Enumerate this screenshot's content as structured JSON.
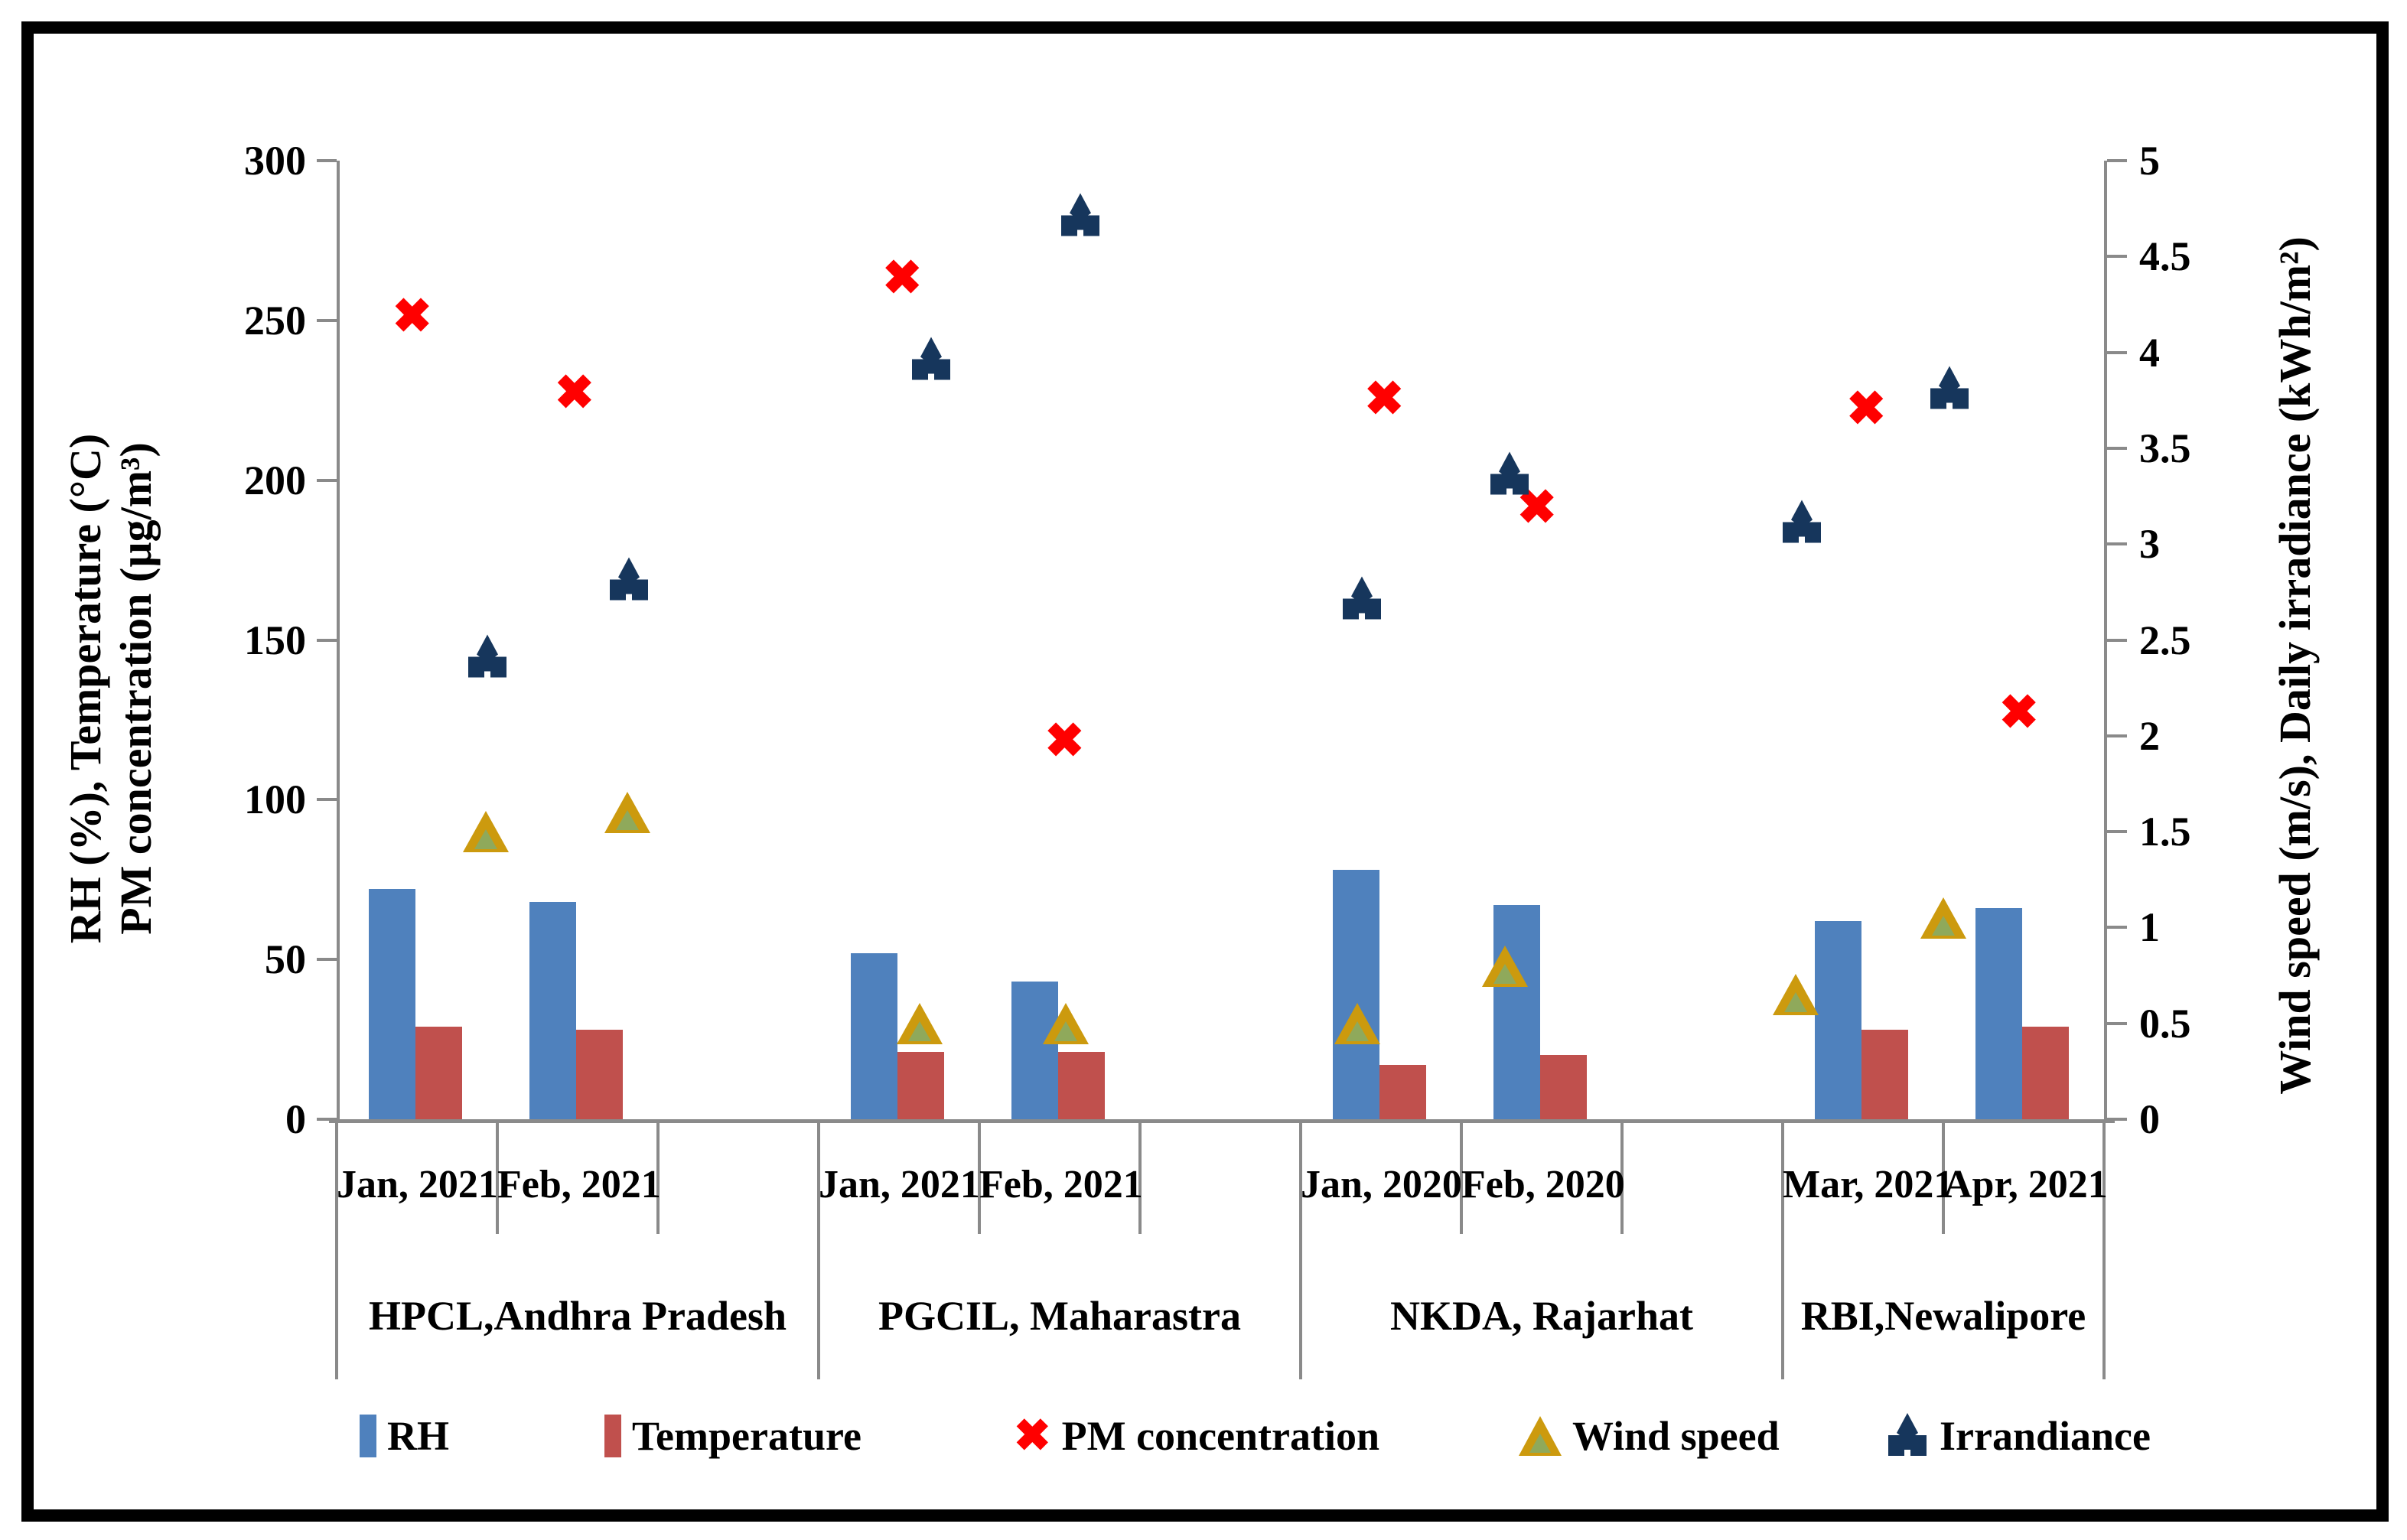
{
  "chart_data": {
    "type": "bar+scatter combo",
    "title": "",
    "left_axis": {
      "title_line1": "RH (%), Temperature (°C)",
      "title_line2": "PM concentration (µg/m³)",
      "min": 0,
      "max": 300,
      "step": 50,
      "tick_labels": [
        "0",
        "50",
        "100",
        "150",
        "200",
        "250",
        "300"
      ]
    },
    "right_axis": {
      "title": "Wind speed (m/s), Daily irradiance (kWh/m²)",
      "min": 0,
      "max": 5,
      "step": 0.5,
      "tick_labels": [
        "0",
        "0.5",
        "1",
        "1.5",
        "2",
        "2.5",
        "3",
        "3.5",
        "4",
        "4.5",
        "5"
      ]
    },
    "groups": [
      {
        "location": "HPCL,Andhra Pradesh",
        "months": [
          "Jan, 2021",
          "Feb, 2021"
        ]
      },
      {
        "location": "PGCIL, Maharastra",
        "months": [
          "Jan, 2021",
          "Feb, 2021"
        ]
      },
      {
        "location": "NKDA, Rajarhat",
        "months": [
          "Jan, 2020",
          "Feb, 2020"
        ]
      },
      {
        "location": "RBI,Newalipore",
        "months": [
          "Mar, 2021",
          "Apr, 2021"
        ]
      }
    ],
    "series": [
      {
        "name": "RH",
        "type": "bar",
        "axis": "left",
        "color": "#4F81BD",
        "values": [
          72,
          68,
          52,
          43,
          78,
          67,
          62,
          66
        ]
      },
      {
        "name": "Temperature",
        "type": "bar",
        "axis": "left",
        "color": "#C0504D",
        "values": [
          29,
          28,
          21,
          21,
          17,
          20,
          28,
          29
        ]
      },
      {
        "name": "PM concentration",
        "type": "x-marker",
        "axis": "left",
        "color": "#FF0000",
        "values": [
          251,
          227,
          263,
          118,
          225,
          191,
          222,
          127
        ]
      },
      {
        "name": "Wind speed",
        "type": "triangle-marker",
        "axis": "right",
        "color": "#CC9A0E",
        "values": [
          1.5,
          1.6,
          0.5,
          0.5,
          0.5,
          0.8,
          0.65,
          1.05
        ]
      },
      {
        "name": "Irrandiance",
        "type": "club-marker",
        "axis": "right",
        "color": "#16365C",
        "values": [
          2.4,
          2.8,
          3.95,
          4.7,
          2.7,
          3.35,
          3.1,
          3.8
        ]
      }
    ],
    "legend": [
      "RH",
      "Temperature",
      "PM concentration",
      "Wind speed",
      "Irrandiance"
    ],
    "legend_position": "bottom",
    "grid": "off",
    "layout_hints": {
      "slot_count": 11,
      "month_slot_indices": [
        0,
        1,
        3,
        4,
        6,
        7,
        9,
        10
      ],
      "group_slot_spans": [
        [
          0,
          3
        ],
        [
          3,
          6
        ],
        [
          6,
          9
        ],
        [
          9,
          11
        ]
      ],
      "marker_x_fractions": {
        "pm": [
          0.47,
          0.48,
          0.52,
          0.53,
          0.52,
          0.47,
          0.52,
          0.47
        ],
        "wind": [
          0.93,
          0.81,
          0.63,
          0.54,
          0.35,
          0.27,
          0.08,
          0.0
        ],
        "irradiance": [
          0.94,
          0.82,
          0.7,
          0.63,
          0.38,
          0.3,
          0.12,
          0.04
        ]
      },
      "legend_item_x": [
        470,
        790,
        1325,
        1985,
        2465
      ]
    },
    "colors": {
      "axis_gray": "#8a8a8a",
      "rh_blue": "#4F81BD",
      "temp_red": "#C0504D",
      "pm_red": "#FF0000",
      "wind_gold": "#CC9A0E",
      "wind_gold_inner": "#8FA95B",
      "irradiance_navy": "#16365C"
    }
  }
}
